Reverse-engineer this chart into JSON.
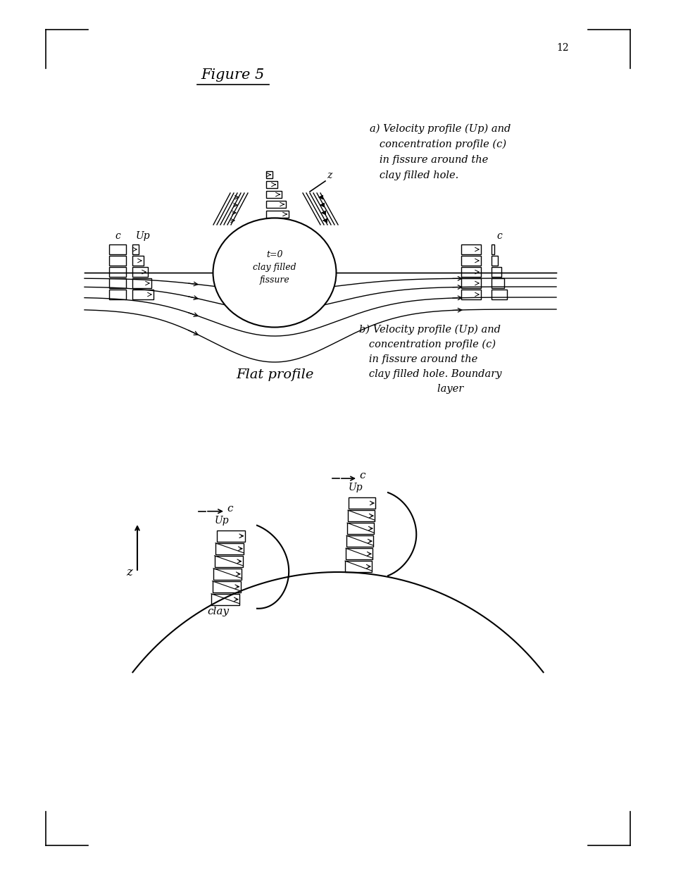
{
  "fig_width": 9.6,
  "fig_height": 12.42,
  "title": "Figure 5",
  "page_num": "12",
  "label_a": [
    "a) Velocity profile (Up) and",
    "   concentration profile (c)",
    "   in fissure around the",
    "   clay filled hole."
  ],
  "label_b": [
    "b) Velocity profile (Up) and",
    "   concentration profile (c)",
    "   in fissure around the",
    "   clay filled hole. Boundary",
    "                        layer"
  ],
  "flat_profile": "Flat profile",
  "clay_label": "clay",
  "t0_label": "t=0",
  "cf_label": "clay filled",
  "fissure_label": "fissure"
}
